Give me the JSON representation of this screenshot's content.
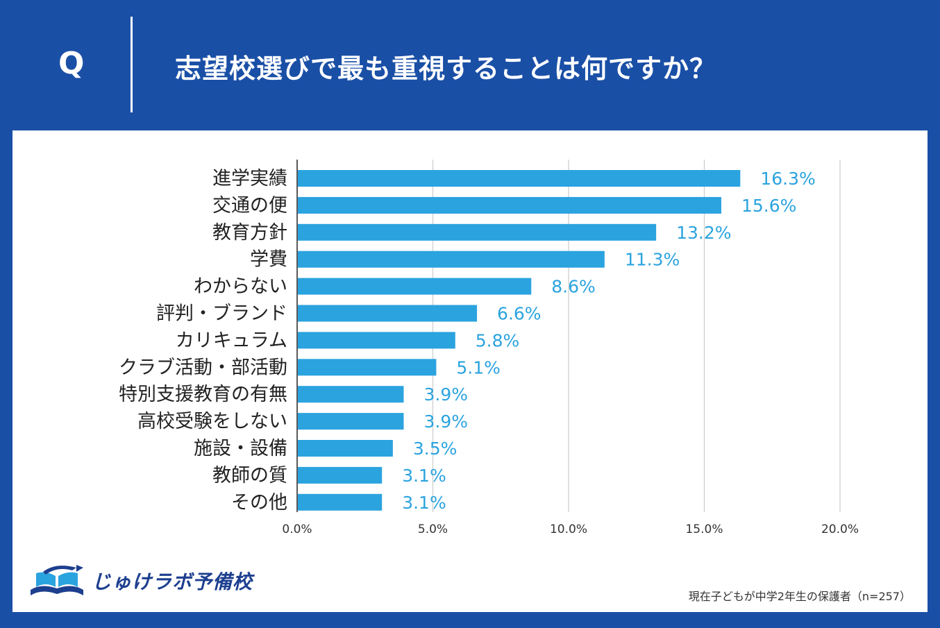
{
  "header": {
    "q_letter": "Q",
    "question": "志望校選びで最も重視することは何ですか？"
  },
  "colors": {
    "background": "#1a4fa6",
    "bar": "#2ba3df",
    "value_text": "#2ba3df",
    "grid": "#cccccc",
    "axis": "#222222"
  },
  "chart_data": {
    "type": "bar",
    "orientation": "horizontal",
    "categories": [
      "進学実績",
      "交通の便",
      "教育方針",
      "学費",
      "わからない",
      "評判・ブランド",
      "カリキュラム",
      "クラブ活動・部活動",
      "特別支援教育の有無",
      "高校受験をしない",
      "施設・設備",
      "教師の質",
      "その他"
    ],
    "values": [
      16.3,
      15.6,
      13.2,
      11.3,
      8.6,
      6.6,
      5.8,
      5.1,
      3.9,
      3.9,
      3.5,
      3.1,
      3.1
    ],
    "value_labels": [
      "16.3%",
      "15.6%",
      "13.2%",
      "11.3%",
      "8.6%",
      "6.6%",
      "5.8%",
      "5.1%",
      "3.9%",
      "3.9%",
      "3.5%",
      "3.1%",
      "3.1%"
    ],
    "xticks": [
      0,
      5,
      10,
      15,
      20
    ],
    "xtick_labels": [
      "0.0%",
      "5.0%",
      "10.0%",
      "15.0%",
      "20.0%"
    ],
    "xlim": [
      0,
      20
    ],
    "grid": "vertical"
  },
  "footer": {
    "logo_text": "じゅけラボ予備校",
    "logo_icon": "open-book-icon",
    "note": "現在子どもが中学2年生の保護者（n=257）"
  }
}
